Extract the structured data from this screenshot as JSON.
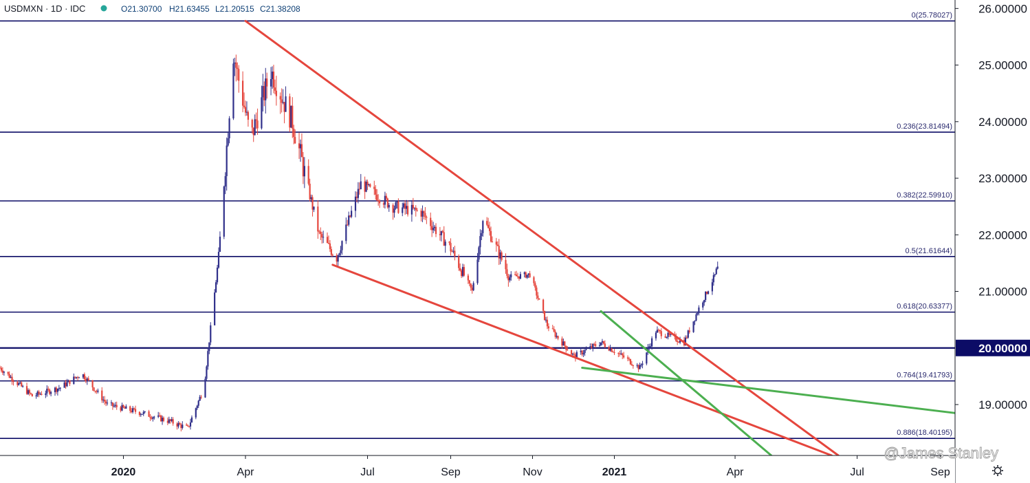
{
  "chart_data": {
    "type": "candlestick",
    "symbol_line": "USDMXN · 1D · IDC",
    "ohlc": {
      "open": "O21.30700",
      "high": "H21.63455",
      "low": "L21.20515",
      "close": "C21.38208"
    },
    "y_axis": {
      "range": [
        18.1,
        26.15
      ],
      "ticks": [
        "26.00000",
        "25.00000",
        "24.00000",
        "23.00000",
        "22.00000",
        "21.00000",
        "19.00000"
      ],
      "highlight_level": "20.00000",
      "highlight_value": 20.0
    },
    "x_axis": {
      "range": [
        "2019-10-01",
        "2021-09-12"
      ],
      "ticks": [
        {
          "label": "2020",
          "date": "2020-01-01",
          "bold": true
        },
        {
          "label": "Apr",
          "date": "2020-04-01",
          "bold": false
        },
        {
          "label": "Jul",
          "date": "2020-07-01",
          "bold": false
        },
        {
          "label": "Sep",
          "date": "2020-09-01",
          "bold": false
        },
        {
          "label": "Nov",
          "date": "2020-11-01",
          "bold": false
        },
        {
          "label": "2021",
          "date": "2021-01-01",
          "bold": true
        },
        {
          "label": "Apr",
          "date": "2021-04-01",
          "bold": false
        },
        {
          "label": "Jul",
          "date": "2021-07-01",
          "bold": false
        },
        {
          "label": "Sep",
          "date": "2021-09-01",
          "bold": false
        }
      ]
    },
    "fibonacci_levels": [
      {
        "label": "0(25.78027)",
        "value": 25.78027
      },
      {
        "label": "0.236(23.81494)",
        "value": 23.81494
      },
      {
        "label": "0.382(22.59910)",
        "value": 22.5991
      },
      {
        "label": "0.5(21.61644)",
        "value": 21.61644
      },
      {
        "label": "0.618(20.63377)",
        "value": 20.63377
      },
      {
        "label": "0.764(19.41793)",
        "value": 19.41793
      },
      {
        "label": "0.886(18.40195)",
        "value": 18.40195
      }
    ],
    "key_points": [
      {
        "date": "2019-10-01",
        "close": 19.65
      },
      {
        "date": "2019-10-25",
        "close": 19.15
      },
      {
        "date": "2019-11-15",
        "close": 19.3
      },
      {
        "date": "2019-12-01",
        "close": 19.55
      },
      {
        "date": "2019-12-20",
        "close": 19.0
      },
      {
        "date": "2020-01-15",
        "close": 18.85
      },
      {
        "date": "2020-02-05",
        "close": 18.7
      },
      {
        "date": "2020-02-18",
        "close": 18.58
      },
      {
        "date": "2020-03-01",
        "close": 19.3
      },
      {
        "date": "2020-03-12",
        "close": 21.6
      },
      {
        "date": "2020-03-23",
        "close": 25.2
      },
      {
        "date": "2020-04-05",
        "close": 23.7
      },
      {
        "date": "2020-04-20",
        "close": 24.9
      },
      {
        "date": "2020-05-06",
        "close": 24.0
      },
      {
        "date": "2020-05-26",
        "close": 22.0
      },
      {
        "date": "2020-06-08",
        "close": 21.6
      },
      {
        "date": "2020-06-26",
        "close": 22.9
      },
      {
        "date": "2020-07-20",
        "close": 22.5
      },
      {
        "date": "2020-08-10",
        "close": 22.4
      },
      {
        "date": "2020-08-31",
        "close": 21.8
      },
      {
        "date": "2020-09-17",
        "close": 21.0
      },
      {
        "date": "2020-09-25",
        "close": 22.3
      },
      {
        "date": "2020-10-15",
        "close": 21.25
      },
      {
        "date": "2020-10-30",
        "close": 21.3
      },
      {
        "date": "2020-11-12",
        "close": 20.4
      },
      {
        "date": "2020-12-02",
        "close": 19.85
      },
      {
        "date": "2020-12-22",
        "close": 20.1
      },
      {
        "date": "2021-01-20",
        "close": 19.65
      },
      {
        "date": "2021-02-01",
        "close": 20.3
      },
      {
        "date": "2021-02-22",
        "close": 20.1
      },
      {
        "date": "2021-03-05",
        "close": 20.7
      },
      {
        "date": "2021-03-19",
        "close": 21.38
      }
    ],
    "trendlines": [
      {
        "color": "#e5463d",
        "from": {
          "date": "2020-04-01",
          "price": 25.78
        },
        "to": {
          "date": "2021-06-17",
          "price": 18.1
        }
      },
      {
        "color": "#e5463d",
        "from": {
          "date": "2020-06-05",
          "price": 21.47
        },
        "to": {
          "date": "2021-06-12",
          "price": 18.1
        }
      },
      {
        "color": "#4caf50",
        "from": {
          "date": "2020-12-22",
          "price": 20.65
        },
        "to": {
          "date": "2021-04-28",
          "price": 18.1
        }
      },
      {
        "color": "#4caf50",
        "from": {
          "date": "2020-12-08",
          "price": 19.65
        },
        "to": {
          "date": "2021-09-12",
          "price": 18.85
        }
      }
    ]
  },
  "watermark": "@James Stanley",
  "settings_icon": "gear-icon",
  "colors": {
    "up": "#2f2f8a",
    "down": "#e5463d",
    "fib_line": "#0c0c66",
    "trend_red": "#e5463d",
    "trend_green": "#4caf50",
    "legend_dot": "#26a69a"
  }
}
